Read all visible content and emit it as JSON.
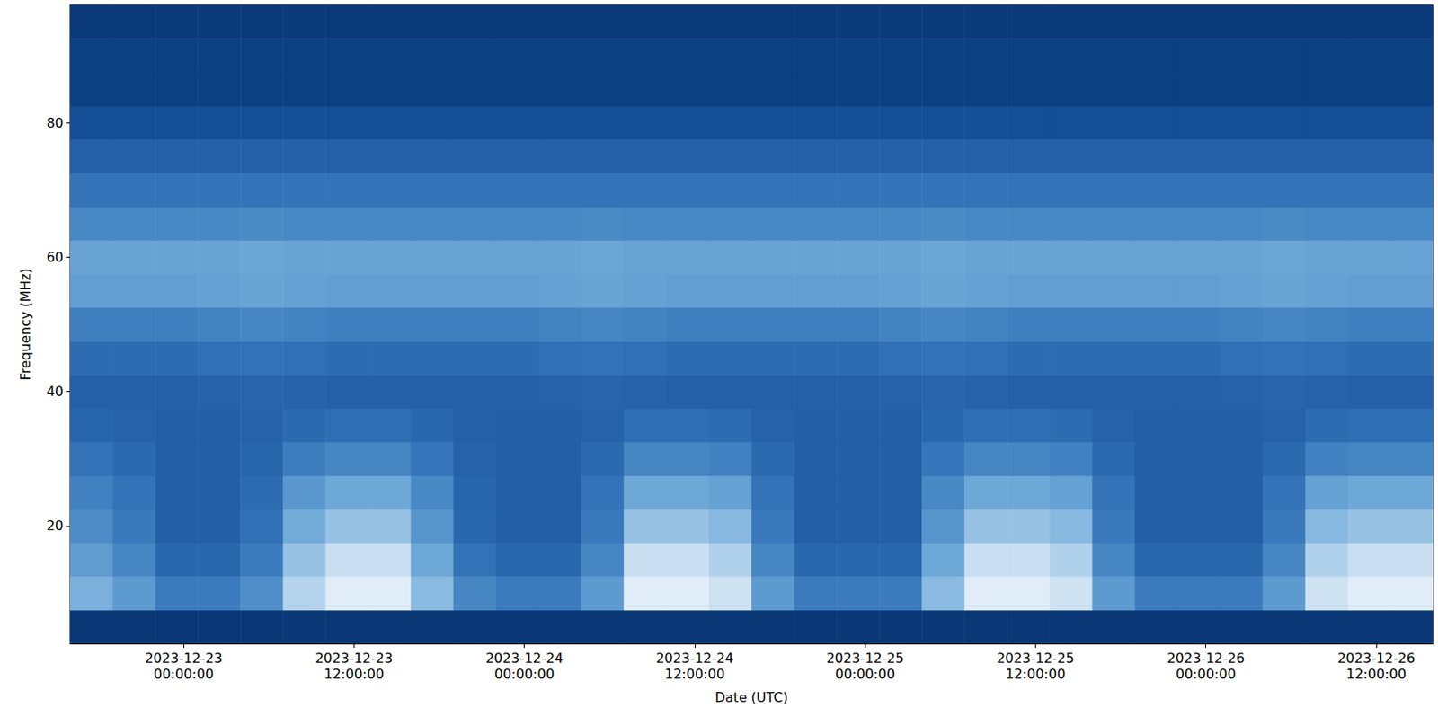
{
  "chart_data": {
    "type": "heatmap",
    "x_label": "Date (UTC)",
    "y_label": "Frequency (MHz)",
    "xlim": [
      "2023-12-22 16:00:00",
      "2023-12-26 16:00:00"
    ],
    "xticks": [
      "2023-12-23 00:00:00",
      "2023-12-23 12:00:00",
      "2023-12-24 00:00:00",
      "2023-12-24 12:00:00",
      "2023-12-25 00:00:00",
      "2023-12-25 12:00:00",
      "2023-12-26 00:00:00",
      "2023-12-26 12:00:00"
    ],
    "ylim": [
      2.5,
      97.5
    ],
    "yticks": [
      20,
      40,
      60,
      80
    ],
    "grid": false,
    "x": [
      "2023-12-22 16:00:00",
      "2023-12-22 19:00:00",
      "2023-12-22 22:00:00",
      "2023-12-23 01:00:00",
      "2023-12-23 04:00:00",
      "2023-12-23 07:00:00",
      "2023-12-23 10:00:00",
      "2023-12-23 13:00:00",
      "2023-12-23 16:00:00",
      "2023-12-23 19:00:00",
      "2023-12-23 22:00:00",
      "2023-12-24 01:00:00",
      "2023-12-24 04:00:00",
      "2023-12-24 07:00:00",
      "2023-12-24 10:00:00",
      "2023-12-24 13:00:00",
      "2023-12-24 16:00:00",
      "2023-12-24 19:00:00",
      "2023-12-24 22:00:00",
      "2023-12-25 01:00:00",
      "2023-12-25 04:00:00",
      "2023-12-25 07:00:00",
      "2023-12-25 10:00:00",
      "2023-12-25 13:00:00",
      "2023-12-25 16:00:00",
      "2023-12-25 19:00:00",
      "2023-12-25 22:00:00",
      "2023-12-26 01:00:00",
      "2023-12-26 04:00:00",
      "2023-12-26 07:00:00",
      "2023-12-26 10:00:00",
      "2023-12-26 13:00:00",
      "2023-12-26 16:00:00"
    ],
    "y": [
      2.5,
      7.5,
      12.5,
      17.5,
      22.5,
      27.5,
      32.5,
      37.5,
      42.5,
      47.5,
      52.5,
      57.5,
      62.5,
      67.5,
      72.5,
      77.5,
      82.5,
      87.5,
      92.5,
      97.5
    ],
    "zlim": [
      0,
      10
    ],
    "cells": [
      [
        0.8,
        0.8,
        0.8,
        0.8,
        0.8,
        0.8,
        0.8,
        0.8,
        0.8,
        0.8,
        0.8,
        0.8,
        0.8,
        0.8,
        0.8,
        0.8,
        0.8,
        0.8,
        0.8,
        0.8,
        0.8,
        0.8,
        0.8,
        0.8,
        0.8,
        0.8,
        0.8,
        0.8,
        0.8,
        0.8,
        0.8,
        0.8
      ],
      [
        7.3,
        6.4,
        5,
        5,
        5.9,
        8.6,
        9.5,
        9.5,
        7.7,
        5.5,
        5,
        5,
        6.4,
        9.5,
        9.5,
        9.1,
        6.4,
        5,
        5,
        5,
        7.7,
        9.5,
        9.5,
        9.1,
        6.4,
        5,
        5,
        5,
        6.4,
        9.1,
        9.5,
        9.5
      ],
      [
        6.5,
        5.5,
        4,
        4,
        5,
        8,
        9,
        9,
        7,
        4.5,
        4,
        4,
        5.5,
        9,
        9,
        8.5,
        5.5,
        4,
        4,
        4,
        7,
        9,
        9,
        8.5,
        5.5,
        4,
        4,
        4,
        5.5,
        8.5,
        9,
        9
      ],
      [
        5.8,
        4.9,
        3.5,
        3.5,
        4.4,
        7.1,
        8,
        8,
        6.2,
        4,
        3.5,
        3.5,
        4.9,
        8,
        8,
        7.6,
        4.9,
        3.5,
        3.5,
        3.5,
        6.2,
        8,
        8,
        7.6,
        4.9,
        3.5,
        3.5,
        3.5,
        4.9,
        7.6,
        8,
        8
      ],
      [
        5.3,
        4.6,
        3.5,
        3.5,
        4.2,
        6.3,
        7,
        7,
        5.6,
        3.9,
        3.5,
        3.5,
        4.6,
        7,
        7,
        6.7,
        4.6,
        3.5,
        3.5,
        3.5,
        5.6,
        7,
        7,
        6.7,
        4.6,
        3.5,
        3.5,
        3.5,
        4.6,
        6.7,
        7,
        7
      ],
      [
        4.5,
        4.1,
        3.5,
        3.5,
        3.9,
        5.1,
        5.5,
        5.5,
        4.7,
        3.7,
        3.5,
        3.5,
        4.1,
        5.5,
        5.5,
        5.3,
        4.1,
        3.5,
        3.5,
        3.5,
        4.7,
        5.5,
        5.5,
        5.3,
        4.1,
        3.5,
        3.5,
        3.5,
        4.1,
        5.3,
        5.5,
        5.5
      ],
      [
        3.9,
        3.7,
        3.5,
        3.5,
        3.7,
        4.1,
        4.3,
        4.3,
        4,
        3.6,
        3.5,
        3.5,
        3.7,
        4.3,
        4.3,
        4.2,
        3.7,
        3.5,
        3.5,
        3.5,
        4,
        4.3,
        4.3,
        4.2,
        3.7,
        3.5,
        3.5,
        3.5,
        3.7,
        4.2,
        4.3,
        4.3
      ],
      [
        3.6,
        3.6,
        3.6,
        3.7,
        3.8,
        3.7,
        3.6,
        3.6,
        3.6,
        3.6,
        3.6,
        3.7,
        3.8,
        3.7,
        3.6,
        3.6,
        3.6,
        3.6,
        3.6,
        3.7,
        3.8,
        3.7,
        3.6,
        3.6,
        3.6,
        3.6,
        3.6,
        3.7,
        3.8,
        3.7,
        3.6,
        3.6
      ],
      [
        4.2,
        4.2,
        4.2,
        4.4,
        4.5,
        4.4,
        4.2,
        4.2,
        4.2,
        4.2,
        4.2,
        4.4,
        4.5,
        4.4,
        4.2,
        4.2,
        4.2,
        4.2,
        4.2,
        4.4,
        4.5,
        4.4,
        4.2,
        4.2,
        4.2,
        4.2,
        4.2,
        4.4,
        4.5,
        4.4,
        4.2,
        4.2
      ],
      [
        5.2,
        5.2,
        5.2,
        5.4,
        5.5,
        5.4,
        5.2,
        5.2,
        5.2,
        5.2,
        5.2,
        5.4,
        5.5,
        5.4,
        5.2,
        5.2,
        5.2,
        5.2,
        5.2,
        5.4,
        5.5,
        5.4,
        5.2,
        5.2,
        5.2,
        5.2,
        5.2,
        5.4,
        5.5,
        5.4,
        5.2,
        5.2
      ],
      [
        6.6,
        6.6,
        6.6,
        6.7,
        6.8,
        6.7,
        6.6,
        6.6,
        6.6,
        6.6,
        6.6,
        6.7,
        6.8,
        6.7,
        6.6,
        6.6,
        6.6,
        6.6,
        6.6,
        6.7,
        6.8,
        6.7,
        6.6,
        6.6,
        6.6,
        6.6,
        6.6,
        6.7,
        6.8,
        6.7,
        6.6,
        6.6
      ],
      [
        6.8,
        6.8,
        6.8,
        6.8,
        6.9,
        6.8,
        6.8,
        6.8,
        6.8,
        6.8,
        6.8,
        6.8,
        6.9,
        6.8,
        6.8,
        6.8,
        6.8,
        6.8,
        6.8,
        6.8,
        6.9,
        6.8,
        6.8,
        6.8,
        6.8,
        6.8,
        6.8,
        6.8,
        6.9,
        6.8,
        6.8,
        6.8
      ],
      [
        5.6,
        5.6,
        5.6,
        5.6,
        5.7,
        5.6,
        5.6,
        5.6,
        5.6,
        5.6,
        5.6,
        5.6,
        5.7,
        5.6,
        5.6,
        5.6,
        5.6,
        5.6,
        5.6,
        5.6,
        5.7,
        5.6,
        5.6,
        5.6,
        5.6,
        5.6,
        5.6,
        5.6,
        5.7,
        5.6,
        5.6,
        5.6
      ],
      [
        4.6,
        4.6,
        4.6,
        4.6,
        4.6,
        4.6,
        4.6,
        4.6,
        4.6,
        4.6,
        4.6,
        4.6,
        4.6,
        4.6,
        4.6,
        4.6,
        4.6,
        4.6,
        4.6,
        4.6,
        4.6,
        4.6,
        4.6,
        4.6,
        4.6,
        4.6,
        4.6,
        4.6,
        4.6,
        4.6,
        4.6,
        4.6
      ],
      [
        3.6,
        3.6,
        3.6,
        3.6,
        3.6,
        3.6,
        3.6,
        3.6,
        3.6,
        3.6,
        3.6,
        3.6,
        3.6,
        3.6,
        3.6,
        3.6,
        3.6,
        3.6,
        3.6,
        3.6,
        3.6,
        3.6,
        3.6,
        3.6,
        3.6,
        3.6,
        3.6,
        3.6,
        3.6,
        3.6,
        3.6,
        3.6
      ],
      [
        2.6,
        2.6,
        2.6,
        2.6,
        2.6,
        2.6,
        2.6,
        2.6,
        2.6,
        2.6,
        2.6,
        2.6,
        2.6,
        2.6,
        2.6,
        2.6,
        2.6,
        2.6,
        2.6,
        2.6,
        2.6,
        2.6,
        2.6,
        2.6,
        2.6,
        2.6,
        2.6,
        2.6,
        2.6,
        2.6,
        2.6,
        2.6
      ],
      [
        1.6,
        1.6,
        1.6,
        1.6,
        1.6,
        1.6,
        1.6,
        1.6,
        1.6,
        1.6,
        1.6,
        1.6,
        1.6,
        1.6,
        1.6,
        1.6,
        1.6,
        1.6,
        1.6,
        1.6,
        1.6,
        1.6,
        1.6,
        1.6,
        1.6,
        1.6,
        1.6,
        1.6,
        1.6,
        1.6,
        1.6,
        1.6
      ],
      [
        1.6,
        1.6,
        1.6,
        1.6,
        1.6,
        1.6,
        1.6,
        1.6,
        1.6,
        1.6,
        1.6,
        1.6,
        1.6,
        1.6,
        1.6,
        1.6,
        1.6,
        1.6,
        1.6,
        1.6,
        1.6,
        1.6,
        1.6,
        1.6,
        1.6,
        1.6,
        1.6,
        1.6,
        1.6,
        1.6,
        1.6,
        1.6
      ],
      [
        1.0,
        1.0,
        1.0,
        1.0,
        1.0,
        1.0,
        1.0,
        1.0,
        1.0,
        1.0,
        1.0,
        1.0,
        1.0,
        1.0,
        1.0,
        1.0,
        1.0,
        1.0,
        1.0,
        1.0,
        1.0,
        1.0,
        1.0,
        1.0,
        1.0,
        1.0,
        1.0,
        1.0,
        1.0,
        1.0,
        1.0,
        1.0
      ]
    ]
  }
}
